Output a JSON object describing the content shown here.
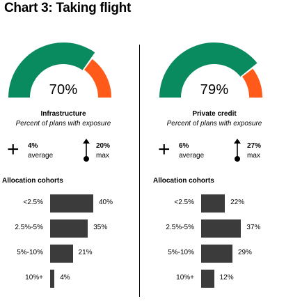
{
  "title": "Chart 3: Taking flight",
  "colors": {
    "green": "#0a8a5f",
    "orange": "#ff5a1a",
    "bar": "#3b3b3b"
  },
  "panels": [
    {
      "gauge_label": "70%",
      "subtitle": "Infrastructure",
      "caption": "Percent of plans with exposure",
      "average_value": "4%",
      "average_label": "average",
      "max_value": "20%",
      "max_label": "max",
      "cohort_title": "Allocation cohorts"
    },
    {
      "gauge_label": "79%",
      "subtitle": "Private credit",
      "caption": "Percent of plans with exposure",
      "average_value": "6%",
      "average_label": "average",
      "max_value": "27%",
      "max_label": "max",
      "cohort_title": "Allocation cohorts"
    }
  ],
  "chart_data": [
    {
      "type": "gauge",
      "value": 70,
      "max": 100,
      "label": "70%"
    },
    {
      "type": "bar",
      "orientation": "horizontal",
      "title": "Allocation cohorts",
      "categories": [
        "<2.5%",
        "2.5%-5%",
        "5%-10%",
        "10%+"
      ],
      "values": [
        40,
        35,
        21,
        4
      ],
      "value_labels": [
        "40%",
        "35%",
        "21%",
        "4%"
      ]
    },
    {
      "type": "gauge",
      "value": 79,
      "max": 100,
      "label": "79%"
    },
    {
      "type": "bar",
      "orientation": "horizontal",
      "title": "Allocation cohorts",
      "categories": [
        "<2.5%",
        "2.5%-5%",
        "5%-10%",
        "10%+"
      ],
      "values": [
        22,
        37,
        29,
        12
      ],
      "value_labels": [
        "22%",
        "37%",
        "29%",
        "12%"
      ]
    }
  ]
}
